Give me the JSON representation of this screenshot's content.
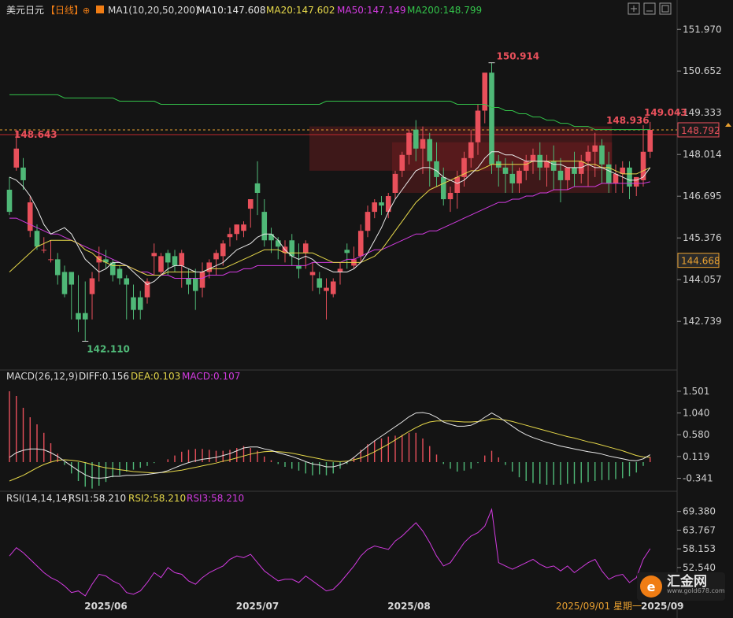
{
  "chart_data": {
    "type": "candlestick",
    "symbol": "美元日元",
    "period_label": "【日线】",
    "ma_label": "MA1(10,20,50,200)",
    "ma_values": [
      {
        "label": "MA10:147.608",
        "color": "#e8e8e8"
      },
      {
        "label": "MA20:147.602",
        "color": "#e6d84a"
      },
      {
        "label": "MA50:147.149",
        "color": "#d23be0"
      },
      {
        "label": "MA200:148.799",
        "color": "#33c24a"
      }
    ],
    "price_ticks": [
      "151.970",
      "150.652",
      "149.333",
      "148.014",
      "146.695",
      "145.376",
      "144.057",
      "142.739"
    ],
    "price_tick_values": [
      151.97,
      150.652,
      149.333,
      148.014,
      146.695,
      145.376,
      144.057,
      142.739
    ],
    "price_range": [
      141.3,
      152.3
    ],
    "annotations": {
      "high": "150.914",
      "low": "142.110",
      "level_left": "148.643",
      "recent_high_1": "148.936",
      "recent_high_2": "149.043"
    },
    "current_price": "148.792",
    "current_price_value": 148.792,
    "cross_price": "144.668",
    "cross_price_value": 144.668,
    "red_line_value": 148.643,
    "zones": [
      {
        "x_from": 56,
        "x_to": 87,
        "y_from": 146.8,
        "y_to": 148.4
      },
      {
        "x_from": 44,
        "x_to": 87,
        "y_from": 147.5,
        "y_to": 148.9
      }
    ],
    "candles": [
      [
        146.9,
        147.3,
        146.2,
        146.1
      ],
      [
        147.6,
        148.8,
        148.2,
        147.5
      ],
      [
        147.6,
        147.9,
        147.2,
        146.9
      ],
      [
        145.6,
        146.7,
        146.5,
        145.4
      ],
      [
        145.6,
        145.8,
        145.1,
        145.0
      ],
      [
        145.0,
        145.4,
        145.0,
        144.9
      ],
      [
        144.7,
        145.3,
        144.7,
        144.6
      ],
      [
        144.7,
        144.9,
        144.2,
        143.9
      ],
      [
        144.3,
        144.5,
        143.6,
        143.5
      ],
      [
        144.3,
        144.3,
        143.9,
        142.8
      ],
      [
        143.0,
        144.2,
        142.8,
        142.4
      ],
      [
        143.0,
        144.0,
        142.8,
        142.1
      ],
      [
        143.6,
        144.3,
        144.1,
        142.8
      ],
      [
        144.6,
        145.1,
        144.8,
        144.0
      ],
      [
        144.7,
        145.0,
        144.6,
        144.4
      ],
      [
        144.6,
        144.7,
        144.2,
        144.0
      ],
      [
        144.4,
        144.5,
        144.1,
        143.9
      ],
      [
        144.1,
        144.2,
        143.9,
        142.8
      ],
      [
        143.5,
        143.9,
        143.1,
        142.8
      ],
      [
        143.5,
        143.7,
        143.1,
        142.8
      ],
      [
        143.5,
        144.1,
        144.0,
        143.3
      ],
      [
        144.8,
        145.2,
        144.9,
        144.2
      ],
      [
        144.3,
        144.9,
        144.8,
        144.2
      ],
      [
        144.9,
        145.0,
        144.6,
        144.2
      ],
      [
        144.8,
        145.0,
        144.5,
        144.3
      ],
      [
        144.5,
        145.0,
        144.9,
        143.8
      ],
      [
        144.1,
        144.4,
        143.9,
        143.6
      ],
      [
        144.1,
        144.4,
        143.7,
        143.1
      ],
      [
        143.8,
        144.6,
        144.3,
        143.5
      ],
      [
        144.3,
        144.7,
        144.6,
        144.1
      ],
      [
        144.7,
        145.0,
        144.9,
        144.2
      ],
      [
        144.8,
        145.3,
        145.2,
        144.5
      ],
      [
        145.4,
        145.7,
        145.5,
        145.1
      ],
      [
        145.5,
        145.8,
        145.8,
        145.3
      ],
      [
        145.6,
        145.9,
        145.8,
        145.4
      ],
      [
        146.3,
        146.6,
        146.6,
        145.7
      ],
      [
        147.1,
        147.8,
        146.8,
        146.1
      ],
      [
        146.2,
        146.6,
        145.3,
        145.1
      ],
      [
        145.5,
        145.7,
        145.3,
        144.9
      ],
      [
        145.3,
        145.4,
        145.1,
        144.7
      ],
      [
        144.9,
        145.3,
        145.1,
        144.6
      ],
      [
        145.3,
        145.5,
        144.8,
        144.5
      ],
      [
        144.5,
        145.2,
        144.4,
        144.1
      ],
      [
        144.9,
        145.3,
        145.2,
        144.4
      ],
      [
        144.2,
        144.6,
        144.3,
        143.7
      ],
      [
        144.1,
        144.3,
        143.8,
        143.6
      ],
      [
        143.7,
        144.1,
        143.8,
        142.8
      ],
      [
        143.6,
        144.1,
        144.0,
        143.5
      ],
      [
        144.3,
        144.6,
        144.4,
        143.9
      ],
      [
        145.0,
        145.2,
        144.9,
        144.4
      ],
      [
        144.5,
        145.1,
        144.7,
        144.4
      ],
      [
        144.8,
        145.8,
        145.6,
        144.6
      ],
      [
        145.6,
        146.4,
        146.2,
        145.4
      ],
      [
        146.2,
        146.6,
        146.5,
        146.0
      ],
      [
        146.5,
        146.7,
        146.4,
        146.1
      ],
      [
        146.2,
        146.8,
        146.7,
        146.0
      ],
      [
        146.8,
        147.5,
        147.4,
        146.6
      ],
      [
        147.5,
        148.1,
        148.0,
        147.3
      ],
      [
        148.0,
        148.8,
        148.7,
        147.7
      ],
      [
        148.8,
        149.1,
        148.2,
        147.8
      ],
      [
        148.2,
        148.9,
        148.5,
        147.4
      ],
      [
        148.5,
        148.7,
        147.8,
        147.0
      ],
      [
        147.8,
        148.4,
        147.3,
        147.0
      ],
      [
        147.3,
        147.6,
        146.6,
        146.4
      ],
      [
        146.6,
        147.0,
        146.8,
        146.2
      ],
      [
        146.8,
        147.5,
        147.3,
        146.3
      ],
      [
        147.3,
        148.1,
        147.9,
        147.0
      ],
      [
        147.9,
        148.8,
        148.4,
        147.6
      ],
      [
        148.4,
        149.6,
        149.4,
        148.0
      ],
      [
        149.4,
        150.4,
        150.6,
        149.0
      ],
      [
        150.6,
        150.914,
        147.7,
        147.4
      ],
      [
        147.8,
        148.0,
        147.6,
        147.0
      ],
      [
        147.6,
        147.9,
        147.4,
        146.8
      ],
      [
        147.4,
        147.8,
        147.1,
        146.8
      ],
      [
        147.1,
        147.6,
        147.5,
        146.8
      ],
      [
        147.5,
        148.0,
        147.8,
        147.2
      ],
      [
        147.8,
        148.2,
        148.0,
        147.4
      ],
      [
        148.0,
        148.4,
        147.6,
        147.2
      ],
      [
        147.6,
        148.0,
        147.8,
        147.0
      ],
      [
        147.8,
        148.3,
        147.5,
        146.9
      ],
      [
        147.5,
        147.9,
        147.2,
        146.5
      ],
      [
        147.2,
        147.6,
        147.6,
        146.9
      ],
      [
        147.6,
        148.1,
        147.4,
        147.0
      ],
      [
        147.4,
        148.0,
        147.8,
        147.1
      ],
      [
        147.8,
        148.3,
        148.1,
        147.0
      ],
      [
        148.1,
        148.7,
        148.3,
        147.3
      ],
      [
        148.3,
        148.5,
        147.7,
        147.1
      ],
      [
        147.7,
        148.1,
        147.1,
        146.8
      ],
      [
        147.1,
        147.7,
        147.4,
        146.8
      ],
      [
        147.4,
        147.8,
        147.6,
        146.8
      ],
      [
        147.6,
        147.8,
        147.0,
        146.6
      ],
      [
        147.0,
        147.3,
        147.3,
        146.7
      ],
      [
        147.2,
        148.936,
        148.1,
        147.0
      ],
      [
        148.1,
        149.043,
        148.792,
        147.9
      ]
    ],
    "ma10": [
      147.3,
      147.2,
      147.0,
      146.7,
      146.3,
      145.8,
      145.5,
      145.6,
      145.7,
      145.5,
      145.1,
      144.7,
      144.5,
      144.3,
      144.4,
      144.6,
      144.6,
      144.5,
      144.3,
      144.1,
      143.9,
      144.0,
      144.2,
      144.4,
      144.5,
      144.5,
      144.4,
      144.3,
      144.3,
      144.4,
      144.5,
      144.6,
      144.8,
      145.0,
      145.1,
      145.2,
      145.4,
      145.5,
      145.5,
      145.3,
      145.0,
      144.8,
      144.7,
      144.8,
      144.7,
      144.5,
      144.4,
      144.3,
      144.3,
      144.3,
      144.4,
      144.6,
      144.9,
      145.3,
      145.7,
      146.2,
      146.6,
      146.9,
      147.2,
      147.5,
      147.6,
      147.6,
      147.5,
      147.3,
      147.2,
      147.1,
      147.2,
      147.4,
      147.6,
      147.9,
      148.1,
      148.1,
      148.0,
      148.0,
      147.9,
      147.8,
      147.8,
      147.8,
      147.8,
      147.7,
      147.7,
      147.6,
      147.6,
      147.6,
      147.7,
      147.6,
      147.6,
      147.5,
      147.4,
      147.3,
      147.2,
      147.2,
      147.3,
      147.6
    ],
    "ma20": [
      144.3,
      144.5,
      144.7,
      144.9,
      145.1,
      145.2,
      145.3,
      145.3,
      145.3,
      145.3,
      145.2,
      145.0,
      144.9,
      144.7,
      144.6,
      144.5,
      144.5,
      144.5,
      144.4,
      144.3,
      144.2,
      144.2,
      144.2,
      144.3,
      144.3,
      144.3,
      144.3,
      144.3,
      144.3,
      144.4,
      144.4,
      144.4,
      144.5,
      144.6,
      144.7,
      144.8,
      144.9,
      145.0,
      145.0,
      145.0,
      144.9,
      144.9,
      144.9,
      144.9,
      144.9,
      144.8,
      144.7,
      144.6,
      144.6,
      144.6,
      144.6,
      144.6,
      144.7,
      144.8,
      145.0,
      145.3,
      145.6,
      145.9,
      146.2,
      146.5,
      146.7,
      146.9,
      147.0,
      147.1,
      147.2,
      147.3,
      147.4,
      147.5,
      147.5,
      147.6,
      147.7,
      147.7,
      147.7,
      147.7,
      147.7,
      147.7,
      147.8,
      147.8,
      147.8,
      147.8,
      147.8,
      147.8,
      147.8,
      147.8,
      147.7,
      147.7,
      147.6,
      147.6,
      147.5,
      147.4,
      147.4,
      147.4,
      147.5,
      147.6
    ],
    "ma50": [
      146.0,
      146.0,
      145.9,
      145.8,
      145.7,
      145.6,
      145.5,
      145.5,
      145.4,
      145.3,
      145.2,
      145.1,
      145.0,
      144.9,
      144.8,
      144.7,
      144.6,
      144.5,
      144.4,
      144.3,
      144.3,
      144.2,
      144.2,
      144.2,
      144.1,
      144.1,
      144.1,
      144.1,
      144.1,
      144.2,
      144.2,
      144.2,
      144.3,
      144.3,
      144.4,
      144.4,
      144.5,
      144.5,
      144.5,
      144.5,
      144.5,
      144.5,
      144.5,
      144.5,
      144.6,
      144.6,
      144.6,
      144.6,
      144.6,
      144.7,
      144.7,
      144.8,
      144.9,
      145.0,
      145.0,
      145.1,
      145.2,
      145.3,
      145.4,
      145.5,
      145.5,
      145.6,
      145.6,
      145.7,
      145.8,
      145.9,
      146.0,
      146.1,
      146.2,
      146.3,
      146.4,
      146.5,
      146.5,
      146.6,
      146.6,
      146.7,
      146.7,
      146.8,
      146.8,
      146.9,
      146.9,
      146.9,
      147.0,
      147.0,
      147.0,
      147.0,
      147.1,
      147.1,
      147.1,
      147.1,
      147.1,
      147.1,
      147.1,
      147.15
    ],
    "ma200": [
      149.9,
      149.9,
      149.9,
      149.9,
      149.9,
      149.9,
      149.9,
      149.9,
      149.8,
      149.8,
      149.8,
      149.8,
      149.8,
      149.8,
      149.8,
      149.8,
      149.7,
      149.7,
      149.7,
      149.7,
      149.7,
      149.7,
      149.6,
      149.6,
      149.6,
      149.6,
      149.6,
      149.6,
      149.6,
      149.6,
      149.6,
      149.6,
      149.6,
      149.6,
      149.6,
      149.6,
      149.6,
      149.6,
      149.6,
      149.6,
      149.6,
      149.6,
      149.6,
      149.6,
      149.6,
      149.6,
      149.7,
      149.7,
      149.7,
      149.7,
      149.7,
      149.7,
      149.7,
      149.7,
      149.7,
      149.7,
      149.7,
      149.7,
      149.7,
      149.7,
      149.7,
      149.7,
      149.7,
      149.7,
      149.7,
      149.6,
      149.6,
      149.6,
      149.6,
      149.6,
      149.5,
      149.5,
      149.4,
      149.4,
      149.3,
      149.3,
      149.2,
      149.2,
      149.1,
      149.1,
      149.0,
      149.0,
      148.9,
      148.9,
      148.9,
      148.8,
      148.8,
      148.8,
      148.8,
      148.8,
      148.8,
      148.8,
      148.8,
      148.8
    ],
    "macd_label": "MACD(26,12,9)",
    "macd_values": [
      {
        "label": "DIFF:0.156",
        "color": "#e8e8e8"
      },
      {
        "label": "DEA:0.103",
        "color": "#e6d84a"
      },
      {
        "label": "MACD:0.107",
        "color": "#d23be0"
      }
    ],
    "macd_ticks": [
      "1.501",
      "1.040",
      "0.580",
      "0.119",
      "-0.341"
    ],
    "macd_tick_values": [
      1.501,
      1.04,
      0.58,
      0.119,
      -0.341
    ],
    "macd_range": [
      -0.55,
      1.65
    ],
    "diff": [
      0.1,
      0.2,
      0.25,
      0.28,
      0.28,
      0.26,
      0.2,
      0.12,
      0.02,
      -0.08,
      -0.18,
      -0.27,
      -0.33,
      -0.34,
      -0.33,
      -0.3,
      -0.3,
      -0.28,
      -0.28,
      -0.27,
      -0.26,
      -0.24,
      -0.22,
      -0.18,
      -0.12,
      -0.06,
      -0.01,
      0.03,
      0.06,
      0.08,
      0.1,
      0.14,
      0.18,
      0.24,
      0.3,
      0.32,
      0.32,
      0.28,
      0.25,
      0.2,
      0.16,
      0.12,
      0.07,
      0.01,
      -0.04,
      -0.06,
      -0.1,
      -0.1,
      -0.06,
      0.0,
      0.1,
      0.22,
      0.34,
      0.45,
      0.55,
      0.65,
      0.75,
      0.85,
      0.96,
      1.04,
      1.05,
      1.02,
      0.95,
      0.85,
      0.8,
      0.76,
      0.76,
      0.78,
      0.85,
      0.95,
      1.04,
      0.96,
      0.86,
      0.76,
      0.66,
      0.58,
      0.52,
      0.47,
      0.42,
      0.38,
      0.34,
      0.31,
      0.28,
      0.25,
      0.22,
      0.2,
      0.17,
      0.13,
      0.1,
      0.07,
      0.04,
      0.03,
      0.07,
      0.156
    ],
    "dea": [
      -0.4,
      -0.34,
      -0.28,
      -0.2,
      -0.12,
      -0.05,
      0.0,
      0.04,
      0.05,
      0.04,
      0.02,
      -0.01,
      -0.05,
      -0.09,
      -0.12,
      -0.14,
      -0.16,
      -0.18,
      -0.2,
      -0.21,
      -0.22,
      -0.23,
      -0.22,
      -0.21,
      -0.19,
      -0.17,
      -0.14,
      -0.11,
      -0.08,
      -0.05,
      -0.02,
      0.02,
      0.05,
      0.09,
      0.13,
      0.17,
      0.2,
      0.22,
      0.23,
      0.22,
      0.21,
      0.19,
      0.16,
      0.13,
      0.1,
      0.07,
      0.04,
      0.02,
      0.01,
      0.02,
      0.05,
      0.09,
      0.15,
      0.22,
      0.3,
      0.38,
      0.47,
      0.56,
      0.65,
      0.73,
      0.8,
      0.85,
      0.87,
      0.87,
      0.87,
      0.86,
      0.85,
      0.85,
      0.86,
      0.88,
      0.92,
      0.91,
      0.89,
      0.86,
      0.82,
      0.78,
      0.74,
      0.7,
      0.66,
      0.62,
      0.58,
      0.54,
      0.51,
      0.47,
      0.43,
      0.4,
      0.36,
      0.32,
      0.28,
      0.24,
      0.19,
      0.14,
      0.11,
      0.103
    ],
    "macd_hist": [
      1.5,
      1.4,
      1.15,
      0.95,
      0.8,
      0.62,
      0.4,
      0.18,
      -0.06,
      -0.24,
      -0.4,
      -0.52,
      -0.56,
      -0.5,
      -0.42,
      -0.32,
      -0.28,
      -0.2,
      -0.16,
      -0.12,
      -0.08,
      -0.02,
      0.0,
      0.06,
      0.14,
      0.22,
      0.26,
      0.28,
      0.28,
      0.26,
      0.24,
      0.24,
      0.26,
      0.3,
      0.34,
      0.3,
      0.24,
      0.12,
      0.04,
      -0.04,
      -0.1,
      -0.14,
      -0.18,
      -0.24,
      -0.28,
      -0.26,
      -0.28,
      -0.24,
      -0.14,
      -0.04,
      0.1,
      0.26,
      0.38,
      0.46,
      0.5,
      0.54,
      0.56,
      0.58,
      0.62,
      0.62,
      0.5,
      0.34,
      0.16,
      -0.04,
      -0.14,
      -0.2,
      -0.18,
      -0.14,
      -0.02,
      0.14,
      0.24,
      0.1,
      -0.06,
      -0.2,
      -0.32,
      -0.4,
      -0.44,
      -0.46,
      -0.48,
      -0.48,
      -0.48,
      -0.46,
      -0.46,
      -0.44,
      -0.42,
      -0.4,
      -0.38,
      -0.38,
      -0.36,
      -0.34,
      -0.3,
      -0.22,
      -0.08,
      0.107
    ],
    "rsi_label": "RSI(14,14,14)",
    "rsi_values": [
      {
        "label": "RSI1:58.210",
        "color": "#e8e8e8"
      },
      {
        "label": "RSI2:58.210",
        "color": "#e6d84a"
      },
      {
        "label": "RSI3:58.210",
        "color": "#d23be0"
      }
    ],
    "rsi_ticks": [
      "69.380",
      "63.767",
      "58.153",
      "52.540",
      "46.927"
    ],
    "rsi_tick_values": [
      69.38,
      63.767,
      58.153,
      52.54,
      46.927
    ],
    "rsi_range": [
      42.8,
      71.2
    ],
    "rsi": [
      56.0,
      58.5,
      57.0,
      55.0,
      53.0,
      51.0,
      49.5,
      48.5,
      47.0,
      45.0,
      45.5,
      44.0,
      47.5,
      50.5,
      50.0,
      48.5,
      47.5,
      45.0,
      44.5,
      45.5,
      48.0,
      51.0,
      49.5,
      52.5,
      51.0,
      50.5,
      48.5,
      47.5,
      49.5,
      51.0,
      52.0,
      53.0,
      55.0,
      56.0,
      55.5,
      56.5,
      54.0,
      51.5,
      50.0,
      48.5,
      49.0,
      49.0,
      48.0,
      50.0,
      48.5,
      47.0,
      45.5,
      46.0,
      48.0,
      50.5,
      53.0,
      56.0,
      58.0,
      59.0,
      58.5,
      58.0,
      60.5,
      62.0,
      64.0,
      66.0,
      63.5,
      60.0,
      56.0,
      53.0,
      54.0,
      57.0,
      60.0,
      62.0,
      63.0,
      65.0,
      70.0,
      54.0,
      53.0,
      52.0,
      53.0,
      54.0,
      55.0,
      53.5,
      52.5,
      53.0,
      51.5,
      53.0,
      51.0,
      52.5,
      54.0,
      55.0,
      51.5,
      49.0,
      50.0,
      50.5,
      48.0,
      49.5,
      55.0,
      58.2
    ],
    "x_labels": [
      {
        "label": "2025/06",
        "index": 14
      },
      {
        "label": "2025/07",
        "index": 36
      },
      {
        "label": "2025/08",
        "index": 58
      }
    ],
    "x_cursor_label": "2025/09/01 星期一",
    "x_last_label": "2025/09"
  },
  "logo": {
    "mark": "e",
    "name": "汇金网",
    "url": "www.gold678.com"
  },
  "colors": {
    "up": "#e8505b",
    "down": "#4fb877",
    "background": "#141414",
    "grid": "#2a2a2a"
  },
  "icons": [
    "settings-icon",
    "minimize-icon",
    "restore-icon",
    "close-icon",
    "target-icon"
  ]
}
